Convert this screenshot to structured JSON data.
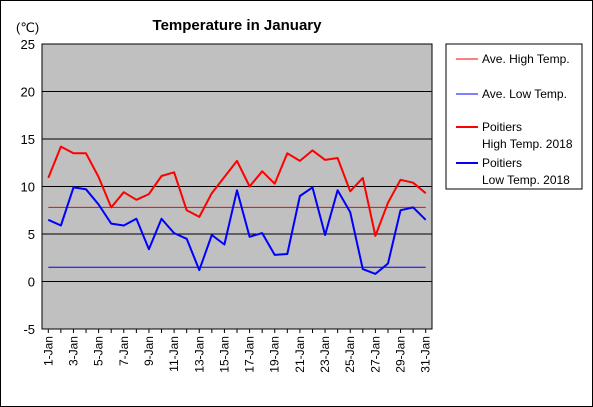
{
  "chart_data": {
    "type": "line",
    "title": "Temperature in January",
    "unit_label": "(℃)",
    "ylim": [
      -5,
      25
    ],
    "yticks": [
      25,
      20,
      15,
      10,
      5,
      0,
      -5
    ],
    "x": [
      1,
      2,
      3,
      4,
      5,
      6,
      7,
      8,
      9,
      10,
      11,
      12,
      13,
      14,
      15,
      16,
      17,
      18,
      19,
      20,
      21,
      22,
      23,
      24,
      25,
      26,
      27,
      28,
      29,
      30,
      31
    ],
    "xtick_labels": [
      "1-Jan",
      "3-Jan",
      "5-Jan",
      "7-Jan",
      "9-Jan",
      "11-Jan",
      "13-Jan",
      "15-Jan",
      "17-Jan",
      "19-Jan",
      "21-Jan",
      "23-Jan",
      "25-Jan",
      "27-Jan",
      "29-Jan",
      "31-Jan"
    ],
    "grid": "horizontal",
    "legend_position": "right",
    "plot_background": "#c0c0c0",
    "series": [
      {
        "name": "Ave. High Temp.",
        "color": "#ff0000",
        "width": 1,
        "values": [
          7.8,
          7.8,
          7.8,
          7.8,
          7.8,
          7.8,
          7.8,
          7.8,
          7.8,
          7.8,
          7.8,
          7.8,
          7.8,
          7.8,
          7.8,
          7.8,
          7.8,
          7.8,
          7.8,
          7.8,
          7.8,
          7.8,
          7.8,
          7.8,
          7.8,
          7.8,
          7.8,
          7.8,
          7.8,
          7.8,
          7.8
        ]
      },
      {
        "name": "Ave. Low Temp.",
        "color": "#0000ff",
        "width": 1,
        "values": [
          1.5,
          1.5,
          1.5,
          1.5,
          1.5,
          1.5,
          1.5,
          1.5,
          1.5,
          1.5,
          1.5,
          1.5,
          1.5,
          1.5,
          1.5,
          1.5,
          1.5,
          1.5,
          1.5,
          1.5,
          1.5,
          1.5,
          1.5,
          1.5,
          1.5,
          1.5,
          1.5,
          1.5,
          1.5,
          1.5,
          1.5
        ]
      },
      {
        "name": "Poitiers High Temp. 2018",
        "name_lines": [
          "Poitiers",
          "High Temp. 2018"
        ],
        "color": "#ff0000",
        "width": 2,
        "values": [
          10.9,
          14.2,
          13.5,
          13.5,
          11.0,
          7.8,
          9.4,
          8.6,
          9.2,
          11.1,
          11.5,
          7.5,
          6.8,
          9.3,
          11.0,
          12.7,
          10.0,
          11.6,
          10.3,
          13.5,
          12.7,
          13.8,
          12.8,
          13.0,
          9.5,
          10.9,
          4.8,
          8.3,
          10.7,
          10.4,
          9.3
        ]
      },
      {
        "name": "Poitiers Low Temp. 2018",
        "name_lines": [
          "Poitiers",
          "Low Temp. 2018"
        ],
        "color": "#0000ff",
        "width": 2,
        "values": [
          6.5,
          5.9,
          9.9,
          9.7,
          8.1,
          6.1,
          5.9,
          6.6,
          3.4,
          6.6,
          5.1,
          4.5,
          1.2,
          4.9,
          3.9,
          9.6,
          4.7,
          5.1,
          2.8,
          2.9,
          9.0,
          9.9,
          4.9,
          9.6,
          7.3,
          1.3,
          0.8,
          1.9,
          7.5,
          7.8,
          6.5
        ]
      }
    ]
  }
}
